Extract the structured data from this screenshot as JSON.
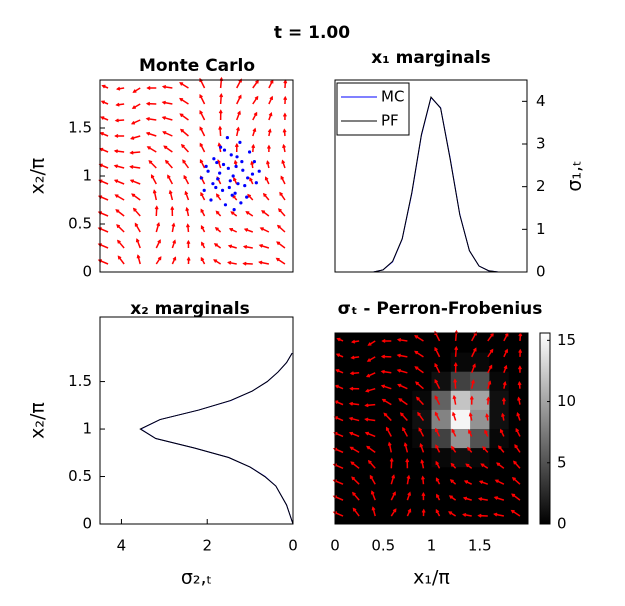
{
  "title": "t = 1.00",
  "chart_data": [
    {
      "type": "scatter",
      "title": "Monte Carlo",
      "ylabel": "x₂/π",
      "xlim": [
        0,
        2
      ],
      "ylim": [
        0,
        2
      ],
      "yticks": [
        0,
        0.5,
        1,
        1.5
      ],
      "color": "#0000ff",
      "quiver_color": "#ff0000",
      "x": [
        1.12,
        1.2,
        1.28,
        1.35,
        1.42,
        1.5,
        1.58,
        1.15,
        1.25,
        1.33,
        1.4,
        1.47,
        1.55,
        1.62,
        1.05,
        1.18,
        1.3,
        1.38,
        1.45,
        1.52,
        1.22,
        1.36,
        1.48,
        1.1,
        1.6,
        1.27,
        1.43,
        1.32,
        1.39,
        1.17,
        1.53,
        1.24,
        1.46,
        1.34,
        1.08,
        1.65,
        1.29,
        1.41,
        1.37,
        1.21
      ],
      "y": [
        1.05,
        0.88,
        1.12,
        0.95,
        1.2,
        0.9,
        1.02,
        0.75,
        1.3,
        1.08,
        0.82,
        1.15,
        1.25,
        0.93,
        0.98,
        1.18,
        0.7,
        1.0,
        1.35,
        0.78,
        0.97,
        1.22,
        1.06,
        1.1,
        1.15,
        0.85,
        0.92,
        1.4,
        0.65,
        0.92,
        0.98,
        1.03,
        0.72,
        0.88,
        0.85,
        1.05,
        1.27,
        1.1,
        0.8,
        1.14
      ]
    },
    {
      "type": "line",
      "title": "x₁ marginals",
      "ylabel": "σ₁,ₜ",
      "yaxis": "right",
      "legend": "upper left",
      "xlim": [
        0,
        2
      ],
      "ylim": [
        0,
        4.5
      ],
      "yticks": [
        0,
        1,
        2,
        3,
        4
      ],
      "x": [
        0,
        0.1,
        0.2,
        0.3,
        0.4,
        0.5,
        0.6,
        0.7,
        0.8,
        0.9,
        1.0,
        1.1,
        1.2,
        1.3,
        1.4,
        1.5,
        1.6,
        1.7,
        1.8,
        1.9,
        2.0
      ],
      "series": [
        {
          "name": "MC",
          "color": "#0000ff",
          "values": [
            0,
            0,
            0,
            0,
            0,
            0.05,
            0.24,
            0.77,
            1.84,
            3.2,
            4.09,
            3.85,
            2.66,
            1.35,
            0.5,
            0.14,
            0.03,
            0,
            0,
            0,
            0
          ]
        },
        {
          "name": "PF",
          "color": "#000000",
          "values": [
            0,
            0,
            0,
            0,
            0,
            0.05,
            0.25,
            0.78,
            1.86,
            3.22,
            4.1,
            3.84,
            2.64,
            1.34,
            0.5,
            0.14,
            0.03,
            0,
            0,
            0,
            0
          ]
        }
      ]
    },
    {
      "type": "line",
      "orientation": "horizontal",
      "title": "x₂ marginals",
      "xlabel": "σ₂,ₜ",
      "ylabel": "x₂/π",
      "xlim": [
        4.5,
        0
      ],
      "xticks": [
        4,
        2,
        0
      ],
      "ylim": [
        0,
        2.18
      ],
      "yticks": [
        0,
        0.5,
        1,
        1.5
      ],
      "y": [
        0,
        0.2,
        0.4,
        0.5,
        0.6,
        0.7,
        0.8,
        0.9,
        1.0,
        1.1,
        1.2,
        1.3,
        1.4,
        1.5,
        1.6,
        1.7,
        1.8
      ],
      "series": [
        {
          "name": "MC",
          "color": "#0000ff",
          "values": [
            0,
            0.15,
            0.4,
            0.65,
            1.0,
            1.5,
            2.3,
            3.2,
            3.55,
            3.1,
            2.2,
            1.45,
            0.95,
            0.6,
            0.35,
            0.15,
            0.02
          ]
        },
        {
          "name": "PF",
          "color": "#000000",
          "values": [
            0,
            0.15,
            0.4,
            0.66,
            1.0,
            1.5,
            2.3,
            3.2,
            3.56,
            3.1,
            2.2,
            1.46,
            0.95,
            0.6,
            0.35,
            0.15,
            0.02
          ]
        }
      ]
    },
    {
      "type": "heatmap",
      "title": "σₜ - Perron-Frobenius",
      "xlabel": "x₁/π",
      "colormap": "gray",
      "quiver_color": "#ff0000",
      "xlim": [
        0,
        2
      ],
      "ylim": [
        0,
        2
      ],
      "xticks": [
        0,
        0.5,
        1,
        1.5
      ],
      "clim": [
        0,
        15.6
      ],
      "cticks": [
        0,
        5,
        10,
        15
      ],
      "z": [
        [
          0,
          0,
          0,
          0,
          0,
          0,
          0,
          0,
          0,
          0
        ],
        [
          0,
          0,
          0,
          0,
          0,
          0,
          0,
          0,
          0,
          0
        ],
        [
          0,
          0,
          0,
          0,
          0,
          0,
          0,
          0,
          0,
          0
        ],
        [
          0,
          0,
          0,
          0,
          0,
          0.5,
          1,
          0.5,
          0,
          0
        ],
        [
          0,
          0,
          0,
          0,
          0.5,
          4,
          9,
          5,
          0.5,
          0
        ],
        [
          0,
          0,
          0,
          0,
          1,
          8,
          15,
          9,
          1,
          0
        ],
        [
          0,
          0,
          0,
          0,
          0.5,
          6,
          12,
          10,
          1,
          0
        ],
        [
          0,
          0,
          0,
          0,
          0,
          1,
          4,
          5,
          0.5,
          0
        ],
        [
          0,
          0,
          0,
          0,
          0,
          0,
          0.5,
          0.5,
          0,
          0
        ],
        [
          0,
          0,
          0,
          0,
          0,
          0,
          0,
          0,
          0,
          0
        ]
      ]
    }
  ]
}
